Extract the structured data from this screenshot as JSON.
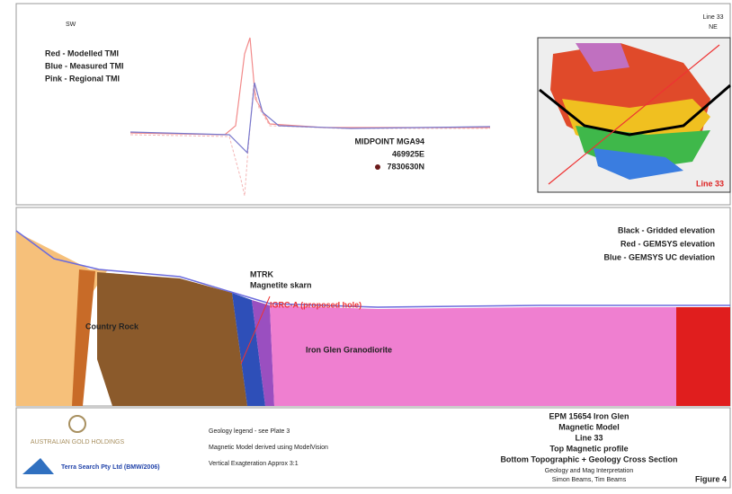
{
  "header": {
    "left_direction": "SW",
    "right_direction": "NE",
    "line_label": "Line 33"
  },
  "magnetic_profile": {
    "legend": [
      "Red - Modelled TMI",
      "Blue - Measured TMI",
      "Pink - Regional TMI"
    ],
    "midpoint": {
      "title": "MIDPOINT MGA94",
      "easting": "469925E",
      "northing": "7830630N"
    },
    "map_label": "Line 33"
  },
  "cross_section": {
    "legend": [
      "Black - Gridded elevation",
      "Red - GEMSYS elevation",
      "Blue - GEMSYS UC deviation"
    ],
    "labels": {
      "mtrk": "MTRK",
      "skarn": "Magnetite skarn",
      "hole": "IGRC-A (proposed hole)",
      "country_rock": "Country Rock",
      "granodiorite": "Iron Glen Granodiorite"
    }
  },
  "footer": {
    "company": "AUSTRALIAN GOLD HOLDINGS",
    "consultant": "Terra Search Pty Ltd (BMW/2006)",
    "notes": [
      "Geology legend - see Plate 3",
      "Magnetic Model derived using ModelVision",
      "Vertical Exagteration Approx 3:1"
    ],
    "title_block": [
      "EPM 15654 Iron Glen",
      "Magnetic Model",
      "Line 33",
      "Top Magnetic profile",
      "Bottom Topographic + Geology Cross Section"
    ],
    "credits": [
      "Geology and Mag Interpretation",
      "Simon Beams, Tim Beams"
    ],
    "figure": "Figure 4"
  }
}
